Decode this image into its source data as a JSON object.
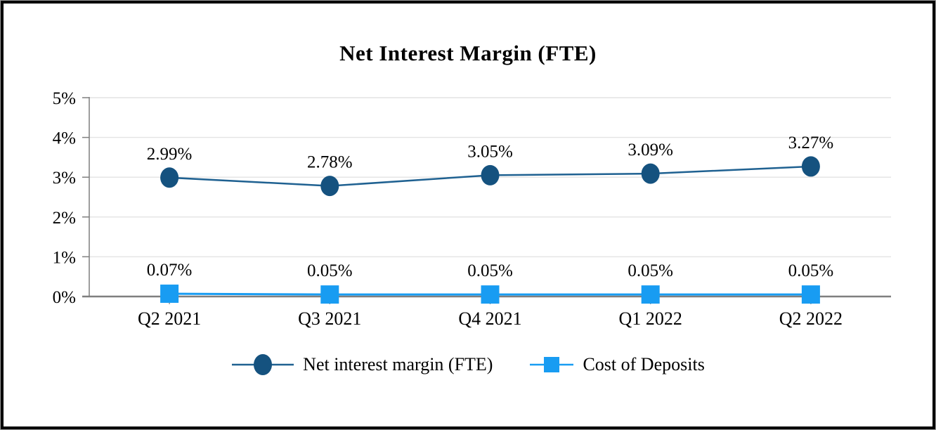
{
  "chart_data": {
    "type": "line",
    "title": "Net Interest Margin (FTE)",
    "categories": [
      "Q2 2021",
      "Q3 2021",
      "Q4 2021",
      "Q1 2022",
      "Q2 2022"
    ],
    "series": [
      {
        "name": "Net interest margin (FTE)",
        "marker": "circle",
        "color": "#15527F",
        "line_color": "#1F6191",
        "values": [
          2.99,
          2.78,
          3.05,
          3.09,
          3.27
        ],
        "point_labels": [
          "2.99%",
          "2.78%",
          "3.05%",
          "3.09%",
          "3.27%"
        ]
      },
      {
        "name": "Cost of Deposits",
        "marker": "square",
        "color": "#189CF2",
        "line_color": "#189CF2",
        "values": [
          0.07,
          0.05,
          0.05,
          0.05,
          0.05
        ],
        "point_labels": [
          "0.07%",
          "0.05%",
          "0.05%",
          "0.05%",
          "0.05%"
        ]
      }
    ],
    "y_axis": {
      "tick_labels": [
        "0%",
        "1%",
        "2%",
        "3%",
        "4%",
        "5%"
      ],
      "min": 0,
      "max": 5
    },
    "grid": "horizontal",
    "legend_position": "bottom",
    "colors": {
      "axis": "#7F7F7F",
      "gridline": "#E3E3E3",
      "text": "#000000"
    }
  }
}
